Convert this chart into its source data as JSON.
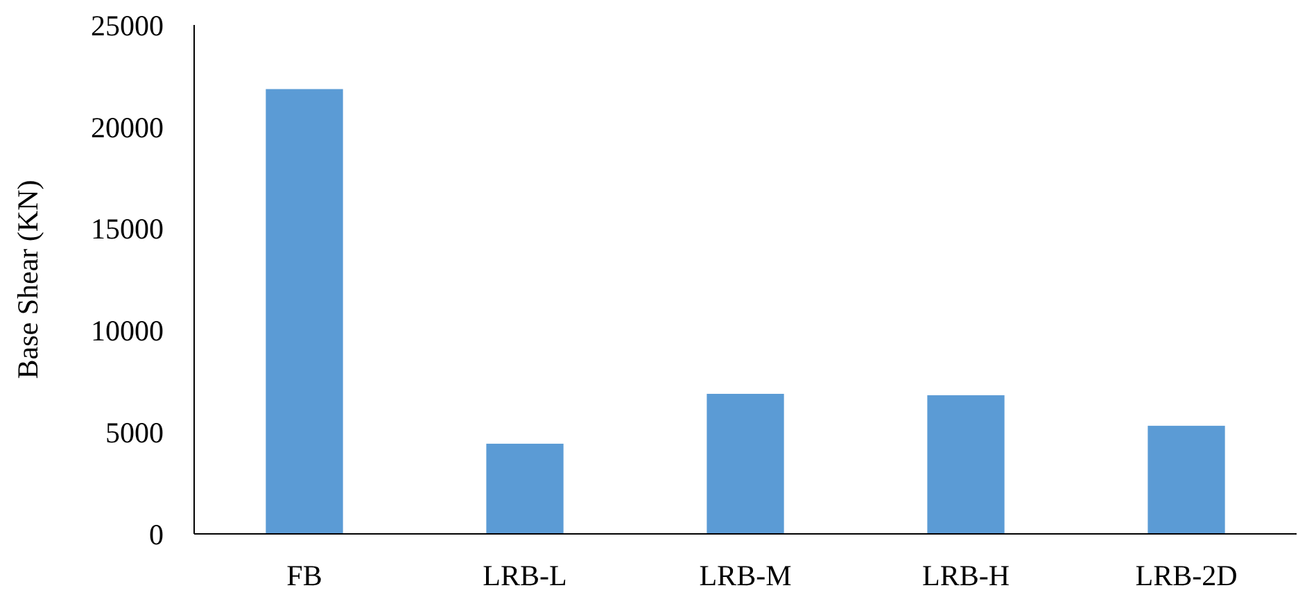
{
  "chart_data": {
    "type": "bar",
    "ylabel": "Base Shear (KN)",
    "categories": [
      "FB",
      "LRB-L",
      "LRB-M",
      "LRB-H",
      "LRB-2D"
    ],
    "values": [
      21850,
      4430,
      6880,
      6810,
      5310
    ],
    "color": "#5b9bd5",
    "ylim": [
      0,
      25000
    ],
    "yticks": [
      0,
      5000,
      10000,
      15000,
      20000,
      25000
    ],
    "grid": false
  }
}
